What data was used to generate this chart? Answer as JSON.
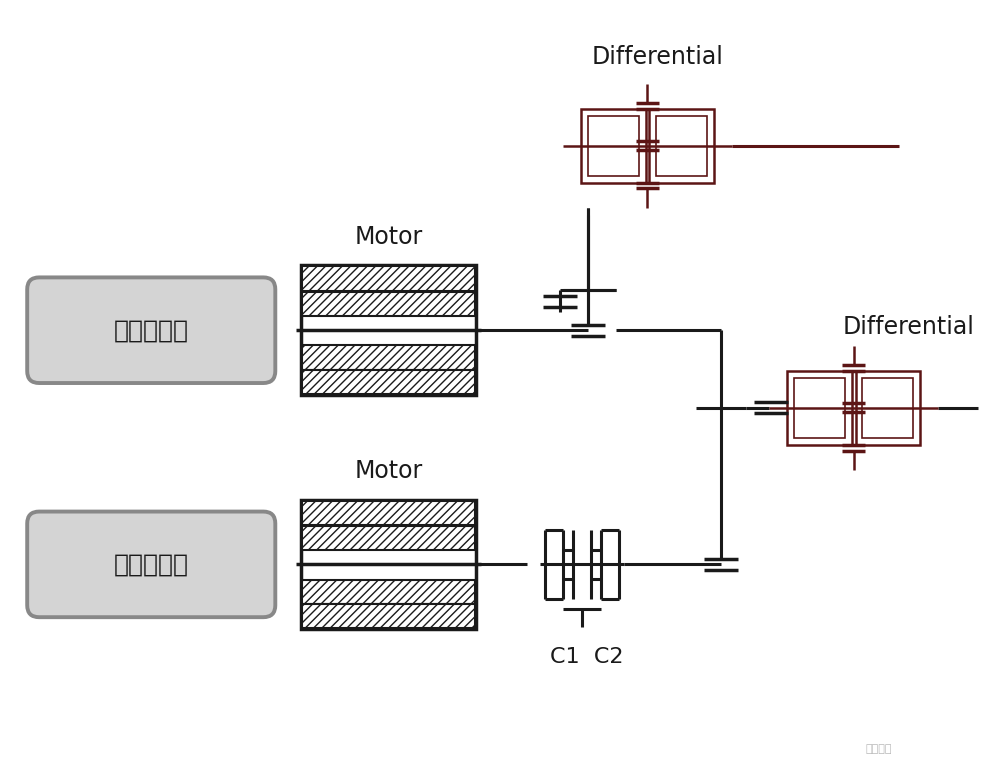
{
  "bg_color": "#ffffff",
  "dark_color": "#1a1a1a",
  "dark_brown": "#5c1515",
  "gray_label_bg": "#d4d4d4",
  "gray_label_border": "#888888",
  "label1_text": "单电机单档",
  "label2_text": "单电机两档",
  "motor_label": "Motor",
  "diff_label": "Differential",
  "c1c2_label": "C1  C2",
  "watermark": "驱动视界"
}
